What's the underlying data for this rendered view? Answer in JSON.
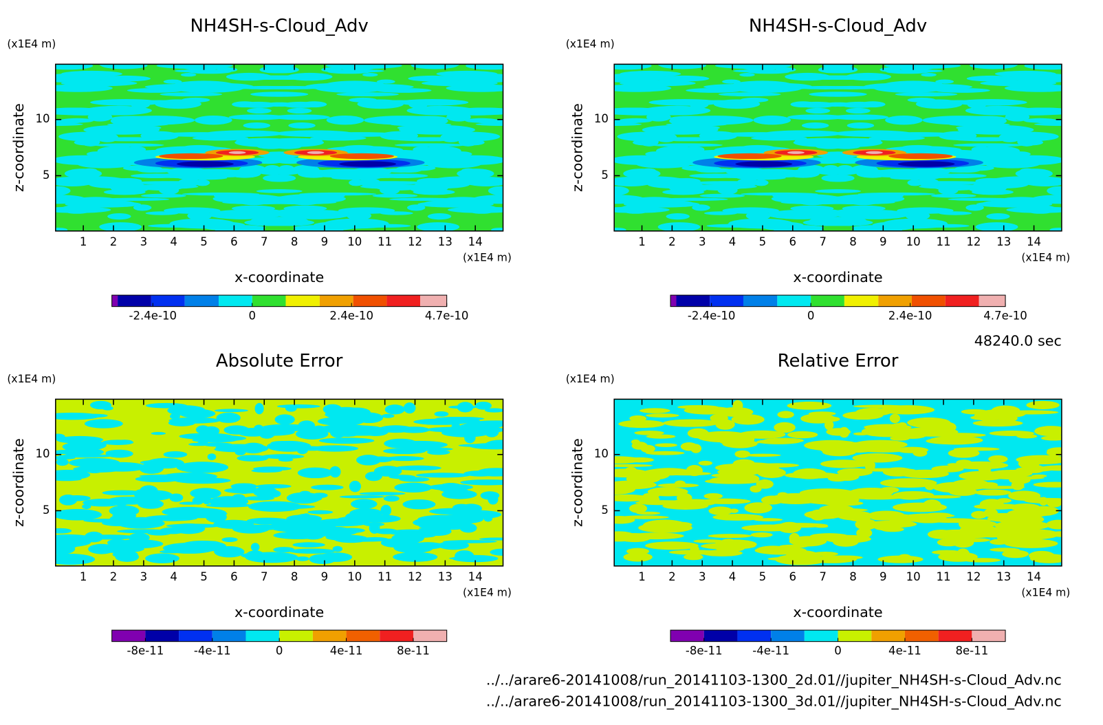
{
  "chart_data": [
    {
      "type": "contour",
      "title": "NH4SH-s-Cloud_Adv",
      "xlabel": "x-coordinate",
      "ylabel": "z-coordinate",
      "x_unit": "(x1E4 m)",
      "y_unit": "(x1E4 m)",
      "xlim": [
        0.08,
        14.92
      ],
      "ylim": [
        0.08,
        14.92
      ],
      "xticks": [
        1,
        2,
        3,
        4,
        5,
        6,
        7,
        8,
        9,
        10,
        11,
        12,
        13,
        14
      ],
      "yticks": [
        5,
        10
      ],
      "colorbar": {
        "levels": [
          -3.39e-10,
          -3.25e-10,
          -2.44e-10,
          -1.63e-10,
          -8.1e-11,
          0,
          8.1e-11,
          1.63e-10,
          2.44e-10,
          3.25e-10,
          4.06e-10,
          4.7e-10
        ],
        "colors": [
          "#8000b0",
          "#0000a8",
          "#0030f0",
          "#0080e8",
          "#00e8f0",
          "#30e030",
          "#f0f000",
          "#f0a000",
          "#f05000",
          "#f02020",
          "#f0b0b0"
        ],
        "ticks": [
          -2.4e-10,
          0,
          2.4e-10,
          4.7e-10
        ]
      }
    },
    {
      "type": "contour",
      "title": "NH4SH-s-Cloud_Adv",
      "xlabel": "x-coordinate",
      "ylabel": "z-coordinate",
      "x_unit": "(x1E4 m)",
      "y_unit": "(x1E4 m)",
      "xlim": [
        0.08,
        14.92
      ],
      "ylim": [
        0.08,
        14.92
      ],
      "xticks": [
        1,
        2,
        3,
        4,
        5,
        6,
        7,
        8,
        9,
        10,
        11,
        12,
        13,
        14
      ],
      "yticks": [
        5,
        10
      ],
      "colorbar": {
        "levels": [
          -3.39e-10,
          -3.25e-10,
          -2.44e-10,
          -1.63e-10,
          -8.1e-11,
          0,
          8.1e-11,
          1.63e-10,
          2.44e-10,
          3.25e-10,
          4.06e-10,
          4.7e-10
        ],
        "colors": [
          "#8000b0",
          "#0000a8",
          "#0030f0",
          "#0080e8",
          "#00e8f0",
          "#30e030",
          "#f0f000",
          "#f0a000",
          "#f05000",
          "#f02020",
          "#f0b0b0"
        ],
        "ticks": [
          -2.4e-10,
          0,
          2.4e-10,
          4.7e-10
        ]
      }
    },
    {
      "type": "contour",
      "title": "Absolute Error",
      "xlabel": "x-coordinate",
      "ylabel": "z-coordinate",
      "x_unit": "(x1E4 m)",
      "y_unit": "(x1E4 m)",
      "xlim": [
        0.08,
        14.92
      ],
      "ylim": [
        0.08,
        14.92
      ],
      "xticks": [
        1,
        2,
        3,
        4,
        5,
        6,
        7,
        8,
        9,
        10,
        11,
        12,
        13,
        14
      ],
      "yticks": [
        5,
        10
      ],
      "colorbar": {
        "levels": [
          -1e-10,
          -8e-11,
          -6e-11,
          -4e-11,
          -2e-11,
          0,
          2e-11,
          4e-11,
          6e-11,
          8e-11,
          1e-10
        ],
        "colors": [
          "#8000b0",
          "#0000a8",
          "#0030f0",
          "#0080e8",
          "#00e8f0",
          "#c8f000",
          "#f0a000",
          "#f06000",
          "#f02020",
          "#f0b0b0"
        ],
        "ticks": [
          -8e-11,
          -4e-11,
          0,
          4e-11,
          8e-11
        ]
      }
    },
    {
      "type": "contour",
      "title": "Relative Error",
      "xlabel": "x-coordinate",
      "ylabel": "z-coordinate",
      "x_unit": "(x1E4 m)",
      "y_unit": "(x1E4 m)",
      "xlim": [
        0.08,
        14.92
      ],
      "ylim": [
        0.08,
        14.92
      ],
      "xticks": [
        1,
        2,
        3,
        4,
        5,
        6,
        7,
        8,
        9,
        10,
        11,
        12,
        13,
        14
      ],
      "yticks": [
        5,
        10
      ],
      "colorbar": {
        "levels": [
          -1e-10,
          -8e-11,
          -6e-11,
          -4e-11,
          -2e-11,
          0,
          2e-11,
          4e-11,
          6e-11,
          8e-11,
          1e-10
        ],
        "colors": [
          "#8000b0",
          "#0000a8",
          "#0030f0",
          "#0080e8",
          "#00e8f0",
          "#c8f000",
          "#f0a000",
          "#f06000",
          "#f02020",
          "#f0b0b0"
        ],
        "ticks": [
          -8e-11,
          -4e-11,
          0,
          4e-11,
          8e-11
        ]
      }
    }
  ],
  "time_label": "48240.0 sec",
  "files": [
    "../../arare6-20141008/run_20141103-1300_2d.01//jupiter_NH4SH-s-Cloud_Adv.nc",
    "../../arare6-20141008/run_20141103-1300_3d.01//jupiter_NH4SH-s-Cloud_Adv.nc"
  ]
}
